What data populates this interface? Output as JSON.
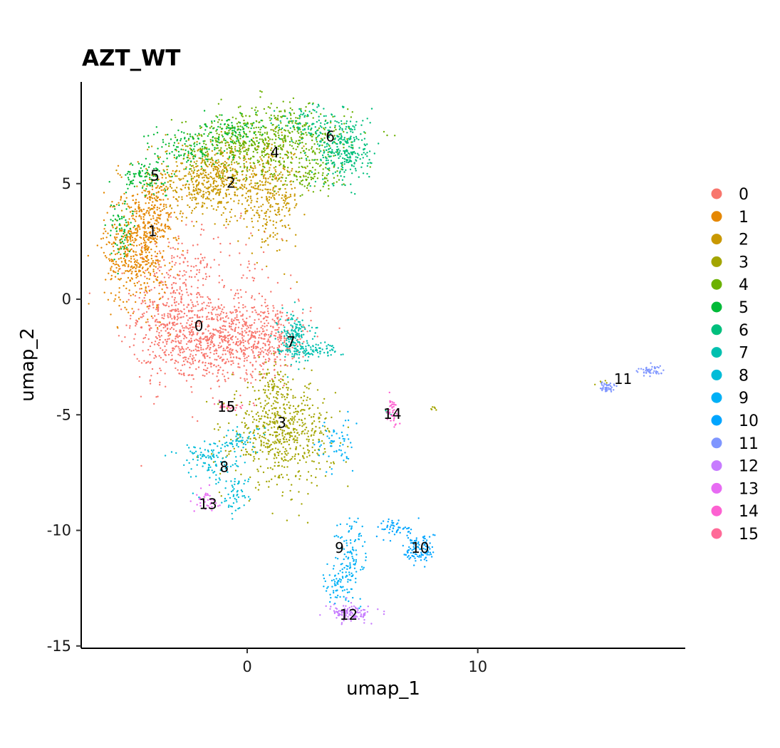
{
  "chart_data": {
    "type": "scatter",
    "title": "AZT_WT",
    "xlabel": "umap_1",
    "ylabel": "umap_2",
    "xlim": [
      -7.2,
      19.0
    ],
    "ylim": [
      -15.1,
      9.4
    ],
    "xticks": [
      0,
      10
    ],
    "yticks": [
      5,
      0,
      -5,
      -10,
      -15
    ],
    "grid": false,
    "legend_position": "right",
    "series": [
      {
        "name": "0",
        "color": "#F8766D",
        "label": "0",
        "label_pos": [
          -2.1,
          -1.2
        ],
        "clusters": [
          {
            "x": -3.2,
            "y": -0.5,
            "sx": 0.9,
            "sy": 1.6,
            "n": 450
          },
          {
            "x": -1.5,
            "y": -1.8,
            "sx": 1.3,
            "sy": 0.9,
            "n": 550
          },
          {
            "x": 0.8,
            "y": -1.6,
            "sx": 1.0,
            "sy": 0.8,
            "n": 350
          },
          {
            "x": -0.5,
            "y": 1.2,
            "sx": 1.2,
            "sy": 1.0,
            "n": 60
          }
        ]
      },
      {
        "name": "1",
        "color": "#E58700",
        "label": "1",
        "label_pos": [
          -4.1,
          2.9
        ],
        "clusters": [
          {
            "x": -4.8,
            "y": 2.2,
            "sx": 0.7,
            "sy": 1.3,
            "n": 550
          },
          {
            "x": -4.0,
            "y": 4.0,
            "sx": 0.5,
            "sy": 0.8,
            "n": 150
          }
        ]
      },
      {
        "name": "2",
        "color": "#C99800",
        "label": "2",
        "label_pos": [
          -0.7,
          5.0
        ],
        "clusters": [
          {
            "x": -1.5,
            "y": 5.2,
            "sx": 1.3,
            "sy": 0.8,
            "n": 600
          },
          {
            "x": 1.0,
            "y": 4.5,
            "sx": 0.7,
            "sy": 1.1,
            "n": 300
          }
        ]
      },
      {
        "name": "3",
        "color": "#A3A500",
        "label": "3",
        "label_pos": [
          1.5,
          -5.4
        ],
        "clusters": [
          {
            "x": 1.5,
            "y": -5.8,
            "sx": 1.1,
            "sy": 1.1,
            "n": 600
          },
          {
            "x": 1.2,
            "y": -3.7,
            "sx": 0.3,
            "sy": 0.5,
            "n": 60
          },
          {
            "x": 8.1,
            "y": -4.7,
            "sx": 0.1,
            "sy": 0.05,
            "n": 6
          },
          {
            "x": 15.3,
            "y": -3.6,
            "sx": 0.15,
            "sy": 0.05,
            "n": 5
          }
        ]
      },
      {
        "name": "4",
        "color": "#6BB100",
        "label": "4",
        "label_pos": [
          1.2,
          6.3
        ],
        "clusters": [
          {
            "x": 1.5,
            "y": 6.8,
            "sx": 1.5,
            "sy": 0.8,
            "n": 500
          },
          {
            "x": -1.0,
            "y": 6.8,
            "sx": 0.9,
            "sy": 0.6,
            "n": 150
          },
          {
            "x": 3.0,
            "y": 5.3,
            "sx": 0.8,
            "sy": 0.3,
            "n": 80
          }
        ]
      },
      {
        "name": "5",
        "color": "#00BA38",
        "label": "5",
        "label_pos": [
          -4.0,
          5.3
        ],
        "clusters": [
          {
            "x": -4.5,
            "y": 5.3,
            "sx": 0.5,
            "sy": 0.3,
            "n": 90
          },
          {
            "x": -5.5,
            "y": 3.0,
            "sx": 0.25,
            "sy": 0.7,
            "n": 70
          },
          {
            "x": -2.5,
            "y": 6.5,
            "sx": 0.9,
            "sy": 0.5,
            "n": 130
          },
          {
            "x": -0.8,
            "y": 7.3,
            "sx": 0.7,
            "sy": 0.3,
            "n": 80
          }
        ]
      },
      {
        "name": "6",
        "color": "#00BF7D",
        "label": "6",
        "label_pos": [
          3.6,
          7.0
        ],
        "clusters": [
          {
            "x": 4.2,
            "y": 6.5,
            "sx": 0.6,
            "sy": 0.8,
            "n": 300
          },
          {
            "x": 2.5,
            "y": 7.6,
            "sx": 0.6,
            "sy": 0.4,
            "n": 80
          },
          {
            "x": 6.1,
            "y": -4.9,
            "sx": 0.1,
            "sy": 0.05,
            "n": 5
          }
        ]
      },
      {
        "name": "7",
        "color": "#00C0AF",
        "label": "7",
        "label_pos": [
          1.9,
          -1.9
        ],
        "clusters": [
          {
            "x": 2.0,
            "y": -1.6,
            "sx": 0.35,
            "sy": 0.5,
            "n": 180
          },
          {
            "x": 3.0,
            "y": -2.2,
            "sx": 0.5,
            "sy": 0.15,
            "n": 70
          }
        ]
      },
      {
        "name": "8",
        "color": "#00BCD8",
        "label": "8",
        "label_pos": [
          -1.0,
          -7.3
        ],
        "clusters": [
          {
            "x": -1.6,
            "y": -7.0,
            "sx": 0.7,
            "sy": 0.5,
            "n": 120
          },
          {
            "x": -0.5,
            "y": -8.4,
            "sx": 0.3,
            "sy": 0.4,
            "n": 50
          },
          {
            "x": -0.3,
            "y": -6.1,
            "sx": 0.5,
            "sy": 0.3,
            "n": 50
          }
        ]
      },
      {
        "name": "9",
        "color": "#00B0F6",
        "label": "9",
        "label_pos": [
          4.0,
          -10.8
        ],
        "clusters": [
          {
            "x": 4.5,
            "y": -11.3,
            "sx": 0.35,
            "sy": 0.9,
            "n": 120
          },
          {
            "x": 3.8,
            "y": -12.4,
            "sx": 0.25,
            "sy": 0.4,
            "n": 50
          },
          {
            "x": 3.8,
            "y": -6.3,
            "sx": 0.4,
            "sy": 0.6,
            "n": 60
          }
        ]
      },
      {
        "name": "10",
        "color": "#00A5FF",
        "label": "10",
        "label_pos": [
          7.5,
          -10.8
        ],
        "clusters": [
          {
            "x": 7.5,
            "y": -10.8,
            "sx": 0.35,
            "sy": 0.35,
            "n": 100
          },
          {
            "x": 6.5,
            "y": -9.9,
            "sx": 0.4,
            "sy": 0.2,
            "n": 50
          }
        ]
      },
      {
        "name": "11",
        "color": "#7F96FF",
        "label": "11",
        "label_pos": [
          16.3,
          -3.5
        ],
        "clusters": [
          {
            "x": 15.6,
            "y": -3.8,
            "sx": 0.2,
            "sy": 0.12,
            "n": 45
          },
          {
            "x": 17.5,
            "y": -3.1,
            "sx": 0.3,
            "sy": 0.12,
            "n": 45
          }
        ]
      },
      {
        "name": "12",
        "color": "#C77CFF",
        "label": "12",
        "label_pos": [
          4.4,
          -13.7
        ],
        "clusters": [
          {
            "x": 4.5,
            "y": -13.6,
            "sx": 0.45,
            "sy": 0.18,
            "n": 110
          }
        ]
      },
      {
        "name": "13",
        "color": "#E76BF3",
        "label": "13",
        "label_pos": [
          -1.7,
          -8.9
        ],
        "clusters": [
          {
            "x": -1.8,
            "y": -8.7,
            "sx": 0.25,
            "sy": 0.25,
            "n": 40
          }
        ]
      },
      {
        "name": "14",
        "color": "#FD61D1",
        "label": "14",
        "label_pos": [
          6.3,
          -5.0
        ],
        "clusters": [
          {
            "x": 6.3,
            "y": -4.9,
            "sx": 0.15,
            "sy": 0.3,
            "n": 40
          }
        ]
      },
      {
        "name": "15",
        "color": "#FF6A98",
        "label": "15",
        "label_pos": [
          -0.9,
          -4.7
        ],
        "clusters": [
          {
            "x": -0.8,
            "y": -4.65,
            "sx": 0.35,
            "sy": 0.08,
            "n": 25
          }
        ]
      }
    ]
  }
}
